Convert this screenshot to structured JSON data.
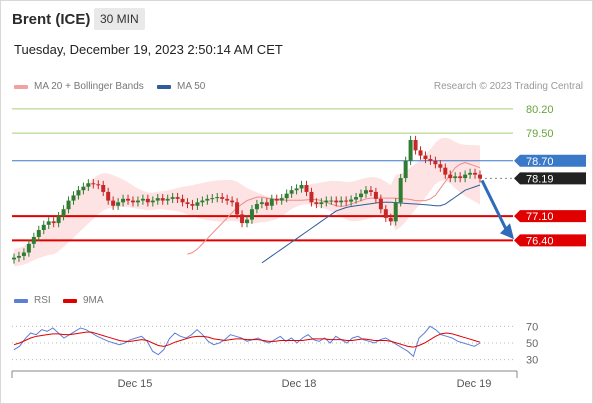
{
  "header": {
    "title": "Brent (ICE)",
    "timeframe": "30 MIN",
    "datetime": "Tuesday, December 19, 2023 2:50:14 AM CET"
  },
  "legend": {
    "ma": "MA 20 + Bollinger Bands",
    "ma50": "MA 50",
    "rsi": "RSI",
    "ma9": "9MA"
  },
  "credit": "Research © 2023 Trading Central",
  "colors": {
    "bollinger": "#f08a8a",
    "ma50": "#2f5d99",
    "green": "#a8cf7a",
    "red": "#e00000",
    "blue": "#3a78c8",
    "rsi": "#5b7fd6",
    "ma9": "#e00000",
    "bull": "#2e7d32",
    "bear": "#c62828"
  },
  "chart_data": {
    "type": "line",
    "instrument": "Brent (ICE)",
    "timeframe": "30 MIN",
    "x_ticks": [
      "Dec 15",
      "Dec 18",
      "Dec 19"
    ],
    "ylim": [
      75.4,
      80.6
    ],
    "levels": [
      {
        "value": 80.2,
        "label": "80.20",
        "kind": "resistance"
      },
      {
        "value": 79.5,
        "label": "79.50",
        "kind": "resistance"
      },
      {
        "value": 78.7,
        "label": "78.70",
        "kind": "pivot"
      },
      {
        "value": 78.19,
        "label": "78.19",
        "kind": "last"
      },
      {
        "value": 77.1,
        "label": "77.10",
        "kind": "support"
      },
      {
        "value": 76.4,
        "label": "76.40",
        "kind": "support"
      }
    ],
    "prices": [
      75.9,
      75.95,
      76.05,
      76.3,
      76.5,
      76.7,
      76.85,
      76.95,
      76.9,
      77.1,
      77.3,
      77.55,
      77.7,
      77.85,
      77.95,
      78.05,
      78.02,
      78.0,
      77.8,
      77.55,
      77.4,
      77.5,
      77.6,
      77.55,
      77.5,
      77.55,
      77.6,
      77.5,
      77.55,
      77.62,
      77.55,
      77.6,
      77.65,
      77.6,
      77.5,
      77.45,
      77.4,
      77.5,
      77.55,
      77.6,
      77.62,
      77.65,
      77.6,
      77.55,
      77.5,
      77.15,
      76.9,
      77.0,
      77.3,
      77.45,
      77.5,
      77.4,
      77.6,
      77.55,
      77.62,
      77.75,
      77.85,
      77.9,
      78.0,
      77.8,
      77.5,
      77.45,
      77.5,
      77.55,
      77.55,
      77.5,
      77.55,
      77.52,
      77.58,
      77.65,
      77.75,
      77.85,
      77.8,
      77.6,
      77.3,
      77.05,
      76.95,
      77.5,
      78.2,
      78.7,
      79.3,
      79.0,
      78.85,
      78.75,
      78.7,
      78.6,
      78.5,
      78.3,
      78.2,
      78.25,
      78.2,
      78.3,
      78.35,
      78.3,
      78.19
    ],
    "ma20": [
      76.0,
      76.05,
      76.15,
      76.3,
      76.45,
      76.6,
      76.75,
      76.9,
      77.05,
      77.2,
      77.35,
      77.45,
      77.55,
      77.6,
      77.65,
      77.65,
      77.62,
      77.6,
      77.58,
      77.57,
      77.56,
      77.56,
      77.56,
      77.56,
      77.57,
      77.58,
      77.58,
      77.55,
      77.5,
      77.45,
      77.4,
      77.38,
      77.4,
      77.45,
      77.5,
      77.55,
      77.6,
      77.62,
      77.62,
      77.62,
      77.62,
      77.62,
      77.62,
      77.6,
      77.6,
      77.58,
      77.55,
      77.55,
      77.55,
      77.6,
      77.7,
      77.9,
      78.1,
      78.3,
      78.5,
      78.6,
      78.65,
      78.6,
      78.55,
      78.5
    ],
    "ma50": [
      75.75,
      75.85,
      75.95,
      76.05,
      76.15,
      76.25,
      76.35,
      76.45,
      76.55,
      76.65,
      76.75,
      76.85,
      76.95,
      77.05,
      77.15,
      77.25,
      77.3,
      77.35,
      77.38,
      77.4,
      77.42,
      77.44,
      77.46,
      77.48,
      77.5,
      77.5,
      77.5,
      77.49,
      77.48,
      77.47,
      77.46,
      77.45,
      77.44,
      77.43,
      77.42,
      77.4,
      77.4,
      77.45,
      77.55,
      77.65,
      77.75,
      77.85,
      77.9,
      77.95,
      78.0
    ],
    "rsi_ticks": [
      70,
      50,
      30
    ],
    "rsi_ylim": [
      20,
      80
    ],
    "rsi": [
      42,
      46,
      55,
      62,
      60,
      66,
      64,
      68,
      62,
      56,
      60,
      64,
      68,
      66,
      62,
      58,
      55,
      52,
      50,
      48,
      50,
      54,
      56,
      58,
      52,
      40,
      36,
      42,
      55,
      62,
      58,
      56,
      60,
      66,
      60,
      52,
      48,
      50,
      54,
      60,
      58,
      56,
      52,
      54,
      56,
      52,
      50,
      54,
      58,
      52,
      56,
      50,
      56,
      60,
      54,
      52,
      56,
      50,
      58,
      54,
      50,
      56,
      58,
      54,
      52,
      50,
      54,
      56,
      52,
      48,
      44,
      40,
      34,
      56,
      62,
      70,
      66,
      60,
      58,
      56,
      52,
      50,
      48,
      46,
      50
    ],
    "ma9": [
      48,
      50,
      53,
      56,
      58,
      59,
      60,
      61,
      61,
      60,
      60,
      61,
      62,
      63,
      63,
      61,
      59,
      57,
      55,
      53,
      52,
      52,
      53,
      54,
      53,
      50,
      47,
      46,
      48,
      51,
      53,
      55,
      57,
      58,
      58,
      57,
      55,
      54,
      53,
      54,
      55,
      55,
      54,
      54,
      54,
      53,
      52,
      52,
      53,
      53,
      53,
      53,
      53,
      54,
      55,
      55,
      55,
      54,
      54,
      54,
      53,
      53,
      54,
      55,
      54,
      53,
      53,
      53,
      52,
      50,
      48,
      46,
      45,
      47,
      50,
      54,
      58,
      61,
      62,
      61,
      59,
      57,
      55,
      53,
      51
    ]
  }
}
